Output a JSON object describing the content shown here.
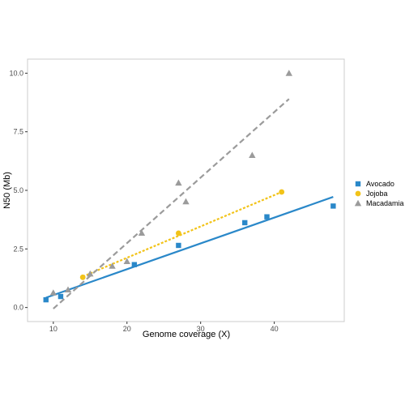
{
  "chart_data": {
    "type": "scatter",
    "title": "",
    "xlabel": "Genome coverage (X)",
    "ylabel": "N50 (Mb)",
    "xlim": [
      6.5,
      49.5
    ],
    "ylim": [
      -0.6,
      10.6
    ],
    "x_ticks": [
      10,
      20,
      30,
      40
    ],
    "x_tick_labels": [
      "10",
      "20",
      "30",
      "40"
    ],
    "y_ticks": [
      0,
      2.5,
      5,
      7.5,
      10
    ],
    "y_tick_labels": [
      "0.0",
      "2.5",
      "5.0",
      "7.5",
      "10.0"
    ],
    "grid": false,
    "legend_position": "right",
    "series": [
      {
        "name": "Avocado",
        "color": "#2a88c9",
        "marker": "square",
        "line_style": "solid",
        "points": [
          [
            9,
            0.33
          ],
          [
            11,
            0.47
          ],
          [
            21,
            1.83
          ],
          [
            27,
            2.65
          ],
          [
            36,
            3.62
          ],
          [
            39,
            3.87
          ],
          [
            48,
            4.33
          ]
        ],
        "fit": [
          [
            9,
            0.42
          ],
          [
            48,
            4.72
          ]
        ]
      },
      {
        "name": "Jojoba",
        "color": "#f2c318",
        "marker": "circle",
        "line_style": "dotted",
        "points": [
          [
            14,
            1.29
          ],
          [
            27,
            3.17
          ],
          [
            41,
            4.93
          ]
        ],
        "fit": [
          [
            14,
            1.32
          ],
          [
            41,
            4.93
          ]
        ]
      },
      {
        "name": "Macadamia",
        "color": "#9b9b9b",
        "marker": "triangle",
        "line_style": "dashed",
        "points": [
          [
            10,
            0.63
          ],
          [
            12,
            0.76
          ],
          [
            15,
            1.44
          ],
          [
            18,
            1.77
          ],
          [
            20,
            1.97
          ],
          [
            22,
            3.18
          ],
          [
            27,
            5.32
          ],
          [
            28,
            4.52
          ],
          [
            37,
            6.5
          ],
          [
            42,
            10.0
          ]
        ],
        "fit": [
          [
            10,
            -0.05
          ],
          [
            42,
            8.9
          ]
        ]
      }
    ]
  }
}
